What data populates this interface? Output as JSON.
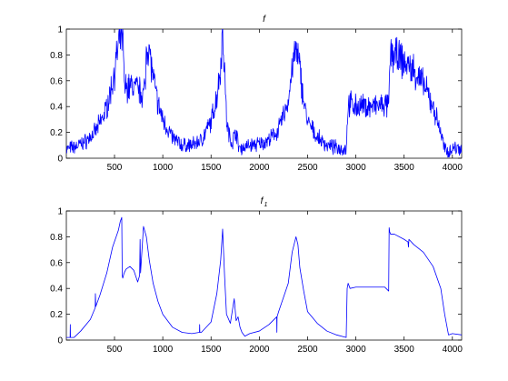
{
  "figure": {
    "background": "#ffffff"
  },
  "chart_data": [
    {
      "type": "line",
      "title": "f",
      "xlim": [
        1,
        4096
      ],
      "ylim": [
        0,
        1
      ],
      "xticks": [
        500,
        1000,
        1500,
        2000,
        2500,
        3000,
        3500,
        4000
      ],
      "yticks": [
        0,
        0.2,
        0.4,
        0.6,
        0.8,
        1
      ],
      "ytick_labels": [
        "0",
        "0.2",
        "0.4",
        "0.6",
        "0.8",
        "1"
      ],
      "grid": false,
      "noisy": true,
      "series": [
        {
          "color": "#0000ff",
          "x": [
            1,
            100,
            200,
            300,
            400,
            450,
            500,
            540,
            570,
            590,
            600,
            640,
            700,
            760,
            800,
            820,
            830,
            860,
            900,
            950,
            1000,
            1100,
            1200,
            1300,
            1400,
            1500,
            1560,
            1600,
            1620,
            1640,
            1660,
            1680,
            1700,
            1720,
            1760,
            1780,
            1800,
            1820,
            1900,
            2000,
            2100,
            2200,
            2300,
            2340,
            2380,
            2420,
            2460,
            2500,
            2600,
            2700,
            2800,
            2900,
            2920,
            2940,
            3000,
            3100,
            3200,
            3300,
            3340,
            3360,
            3400,
            3500,
            3600,
            3700,
            3800,
            3880,
            3920,
            3960,
            4000,
            4096
          ],
          "y": [
            0.07,
            0.09,
            0.13,
            0.2,
            0.35,
            0.48,
            0.67,
            0.86,
            0.97,
            0.9,
            0.55,
            0.55,
            0.56,
            0.52,
            0.5,
            0.56,
            0.9,
            0.84,
            0.62,
            0.42,
            0.3,
            0.16,
            0.1,
            0.1,
            0.14,
            0.28,
            0.48,
            0.72,
            0.98,
            0.7,
            0.3,
            0.2,
            0.15,
            0.12,
            0.22,
            0.1,
            0.08,
            0.08,
            0.1,
            0.11,
            0.14,
            0.22,
            0.44,
            0.7,
            0.84,
            0.7,
            0.44,
            0.28,
            0.16,
            0.1,
            0.08,
            0.07,
            0.42,
            0.42,
            0.4,
            0.4,
            0.4,
            0.41,
            0.4,
            0.82,
            0.8,
            0.74,
            0.68,
            0.57,
            0.4,
            0.2,
            0.07,
            0.05,
            0.08,
            0.08
          ]
        }
      ]
    },
    {
      "type": "line",
      "title": "f",
      "title_subscript": "1",
      "xlim": [
        1,
        4096
      ],
      "ylim": [
        0,
        1
      ],
      "xticks": [
        500,
        1000,
        1500,
        2000,
        2500,
        3000,
        3500,
        4000
      ],
      "yticks": [
        0,
        0.2,
        0.4,
        0.6,
        0.8,
        1
      ],
      "ytick_labels": [
        "0",
        "0.2",
        "0.4",
        "0.6",
        "0.8",
        "1"
      ],
      "grid": false,
      "noisy": false,
      "series": [
        {
          "color": "#0000ff",
          "x": [
            1,
            40,
            42,
            44,
            80,
            150,
            250,
            300,
            302,
            306,
            350,
            420,
            480,
            540,
            560,
            575,
            580,
            585,
            600,
            620,
            660,
            700,
            740,
            760,
            765,
            770,
            800,
            830,
            860,
            900,
            950,
            1000,
            1100,
            1200,
            1300,
            1380,
            1382,
            1384,
            1400,
            1500,
            1560,
            1600,
            1620,
            1640,
            1660,
            1700,
            1740,
            1760,
            1780,
            1800,
            1820,
            1850,
            1900,
            2000,
            2100,
            2180,
            2182,
            2184,
            2200,
            2300,
            2340,
            2380,
            2400,
            2420,
            2460,
            2500,
            2600,
            2700,
            2800,
            2900,
            2910,
            2920,
            2940,
            3000,
            3100,
            3200,
            3300,
            3340,
            3345,
            3350,
            3360,
            3400,
            3500,
            3540,
            3545,
            3550,
            3600,
            3700,
            3800,
            3880,
            3920,
            3960,
            4000,
            4096
          ],
          "y": [
            0.02,
            0.02,
            0.12,
            0.02,
            0.02,
            0.07,
            0.16,
            0.25,
            0.36,
            0.26,
            0.35,
            0.52,
            0.72,
            0.85,
            0.92,
            0.95,
            0.5,
            0.48,
            0.52,
            0.55,
            0.57,
            0.54,
            0.45,
            0.5,
            0.78,
            0.52,
            0.88,
            0.8,
            0.62,
            0.44,
            0.3,
            0.2,
            0.1,
            0.06,
            0.05,
            0.06,
            0.12,
            0.06,
            0.06,
            0.14,
            0.36,
            0.62,
            0.86,
            0.5,
            0.2,
            0.13,
            0.32,
            0.15,
            0.18,
            0.1,
            0.06,
            0.03,
            0.05,
            0.07,
            0.12,
            0.18,
            0.06,
            0.18,
            0.22,
            0.44,
            0.68,
            0.8,
            0.74,
            0.56,
            0.38,
            0.22,
            0.13,
            0.07,
            0.04,
            0.02,
            0.4,
            0.44,
            0.4,
            0.41,
            0.41,
            0.41,
            0.41,
            0.38,
            0.87,
            0.84,
            0.82,
            0.82,
            0.78,
            0.76,
            0.72,
            0.78,
            0.74,
            0.68,
            0.57,
            0.4,
            0.2,
            0.04,
            0.05,
            0.04
          ]
        }
      ]
    }
  ]
}
